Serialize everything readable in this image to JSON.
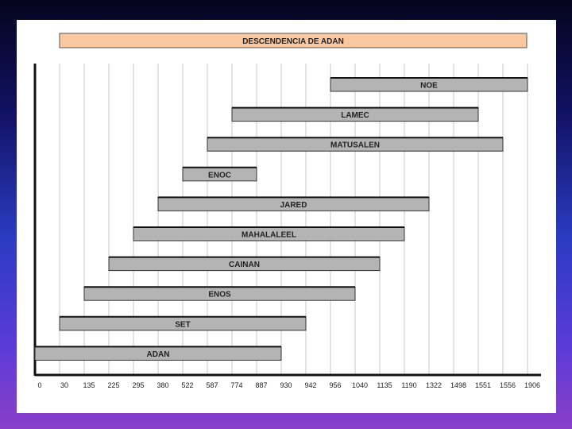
{
  "chart_data": {
    "type": "bar",
    "orientation": "horizontal-timeline",
    "title": "DESCENDENCIA DE ADAN",
    "xlabel": "",
    "ylabel": "",
    "tick_labels": [
      "0",
      "30",
      "135",
      "225",
      "295",
      "380",
      "522",
      "587",
      "774",
      "887",
      "930",
      "942",
      "956",
      "1040",
      "1135",
      "1190",
      "1322",
      "1498",
      "1551",
      "1556",
      "1906"
    ],
    "xlim": [
      0,
      20
    ],
    "grid": true,
    "colors": {
      "bar_fill": "#b4b4b4",
      "bar_stroke": "#333333",
      "title_fill": "#fbc79f",
      "gridline": "#c8c8c8"
    },
    "series": [
      {
        "name": "ADAN",
        "start": 0,
        "end": 10
      },
      {
        "name": "SET",
        "start": 1,
        "end": 11
      },
      {
        "name": "ENOS",
        "start": 2,
        "end": 13
      },
      {
        "name": "CAINAN",
        "start": 3,
        "end": 14
      },
      {
        "name": "MAHALALEEL",
        "start": 4,
        "end": 15
      },
      {
        "name": "JARED",
        "start": 5,
        "end": 16
      },
      {
        "name": "ENOC",
        "start": 6,
        "end": 9
      },
      {
        "name": "MATUSALEN",
        "start": 7,
        "end": 19
      },
      {
        "name": "LAMEC",
        "start": 8,
        "end": 18
      },
      {
        "name": "NOE",
        "start": 12,
        "end": 20
      }
    ]
  }
}
